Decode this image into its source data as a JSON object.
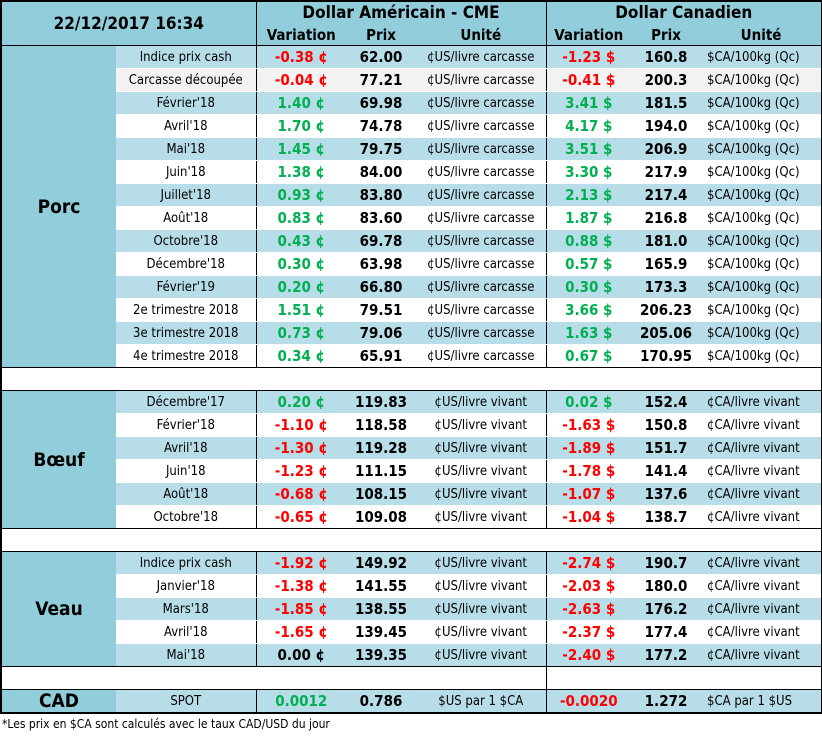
{
  "header": {
    "datetime": "22/12/2017 16:34",
    "usd_title": "Dollar Américain - CME",
    "cad_title": "Dollar Canadien",
    "variation": "Variation",
    "prix": "Prix",
    "unite": "Unité"
  },
  "colors": {
    "negative": "#ff0000",
    "positive": "#00b050",
    "header_bg": "#92cddc",
    "row_bg": "#b7dde8"
  },
  "sections": [
    {
      "name": "Porc",
      "rows": [
        {
          "label": "Indice prix cash",
          "us_var": "-0.38 ¢",
          "us_prix": "62.00",
          "us_unit": "¢US/livre carcasse",
          "ca_var": "-1.23 $",
          "ca_prix": "160.8",
          "ca_unit": "$CA/100kg (Qc)"
        },
        {
          "label": "Carcasse découpée",
          "us_var": "-0.04 ¢",
          "us_prix": "77.21",
          "us_unit": "¢US/livre carcasse",
          "ca_var": "-0.41 $",
          "ca_prix": "200.3",
          "ca_unit": "$CA/100kg (Qc)"
        },
        {
          "label": "Février'18",
          "us_var": "1.40 ¢",
          "us_prix": "69.98",
          "us_unit": "¢US/livre carcasse",
          "ca_var": "3.41 $",
          "ca_prix": "181.5",
          "ca_unit": "$CA/100kg (Qc)"
        },
        {
          "label": "Avril'18",
          "us_var": "1.70 ¢",
          "us_prix": "74.78",
          "us_unit": "¢US/livre carcasse",
          "ca_var": "4.17 $",
          "ca_prix": "194.0",
          "ca_unit": "$CA/100kg (Qc)"
        },
        {
          "label": "Mai'18",
          "us_var": "1.45 ¢",
          "us_prix": "79.75",
          "us_unit": "¢US/livre carcasse",
          "ca_var": "3.51 $",
          "ca_prix": "206.9",
          "ca_unit": "$CA/100kg (Qc)"
        },
        {
          "label": "Juin'18",
          "us_var": "1.38 ¢",
          "us_prix": "84.00",
          "us_unit": "¢US/livre carcasse",
          "ca_var": "3.30 $",
          "ca_prix": "217.9",
          "ca_unit": "$CA/100kg (Qc)"
        },
        {
          "label": "Juillet'18",
          "us_var": "0.93 ¢",
          "us_prix": "83.80",
          "us_unit": "¢US/livre carcasse",
          "ca_var": "2.13 $",
          "ca_prix": "217.4",
          "ca_unit": "$CA/100kg (Qc)"
        },
        {
          "label": "Août'18",
          "us_var": "0.83 ¢",
          "us_prix": "83.60",
          "us_unit": "¢US/livre carcasse",
          "ca_var": "1.87 $",
          "ca_prix": "216.8",
          "ca_unit": "$CA/100kg (Qc)"
        },
        {
          "label": "Octobre'18",
          "us_var": "0.43 ¢",
          "us_prix": "69.78",
          "us_unit": "¢US/livre carcasse",
          "ca_var": "0.88 $",
          "ca_prix": "181.0",
          "ca_unit": "$CA/100kg (Qc)"
        },
        {
          "label": "Décembre'18",
          "us_var": "0.30 ¢",
          "us_prix": "63.98",
          "us_unit": "¢US/livre carcasse",
          "ca_var": "0.57 $",
          "ca_prix": "165.9",
          "ca_unit": "$CA/100kg (Qc)"
        },
        {
          "label": "Février'19",
          "us_var": "0.20 ¢",
          "us_prix": "66.80",
          "us_unit": "¢US/livre carcasse",
          "ca_var": "0.30 $",
          "ca_prix": "173.3",
          "ca_unit": "$CA/100kg (Qc)"
        },
        {
          "label": "2e trimestre 2018",
          "us_var": "1.51 ¢",
          "us_prix": "79.51",
          "us_unit": "¢US/livre carcasse",
          "ca_var": "3.66 $",
          "ca_prix": "206.23",
          "ca_unit": "$CA/100kg (Qc)"
        },
        {
          "label": "3e trimestre 2018",
          "us_var": "0.73 ¢",
          "us_prix": "79.06",
          "us_unit": "¢US/livre carcasse",
          "ca_var": "1.63 $",
          "ca_prix": "205.06",
          "ca_unit": "$CA/100kg (Qc)"
        },
        {
          "label": "4e trimestre 2018",
          "us_var": "0.34 ¢",
          "us_prix": "65.91",
          "us_unit": "¢US/livre carcasse",
          "ca_var": "0.67 $",
          "ca_prix": "170.95",
          "ca_unit": "$CA/100kg (Qc)"
        }
      ]
    },
    {
      "name": "Bœuf",
      "rows": [
        {
          "label": "Décembre'17",
          "us_var": "0.20 ¢",
          "us_prix": "119.83",
          "us_unit": "¢US/livre vivant",
          "ca_var": "0.02 $",
          "ca_prix": "152.4",
          "ca_unit": "¢CA/livre vivant"
        },
        {
          "label": "Février'18",
          "us_var": "-1.10 ¢",
          "us_prix": "118.58",
          "us_unit": "¢US/livre vivant",
          "ca_var": "-1.63 $",
          "ca_prix": "150.8",
          "ca_unit": "¢CA/livre vivant"
        },
        {
          "label": "Avril'18",
          "us_var": "-1.30 ¢",
          "us_prix": "119.28",
          "us_unit": "¢US/livre vivant",
          "ca_var": "-1.89 $",
          "ca_prix": "151.7",
          "ca_unit": "¢CA/livre vivant"
        },
        {
          "label": "Juin'18",
          "us_var": "-1.23 ¢",
          "us_prix": "111.15",
          "us_unit": "¢US/livre vivant",
          "ca_var": "-1.78 $",
          "ca_prix": "141.4",
          "ca_unit": "¢CA/livre vivant"
        },
        {
          "label": "Août'18",
          "us_var": "-0.68 ¢",
          "us_prix": "108.15",
          "us_unit": "¢US/livre vivant",
          "ca_var": "-1.07 $",
          "ca_prix": "137.6",
          "ca_unit": "¢CA/livre vivant"
        },
        {
          "label": "Octobre'18",
          "us_var": "-0.65 ¢",
          "us_prix": "109.08",
          "us_unit": "¢US/livre vivant",
          "ca_var": "-1.04 $",
          "ca_prix": "138.7",
          "ca_unit": "¢CA/livre vivant"
        }
      ]
    },
    {
      "name": "Veau",
      "rows": [
        {
          "label": "Indice prix cash",
          "us_var": "-1.92 ¢",
          "us_prix": "149.92",
          "us_unit": "¢US/livre vivant",
          "ca_var": "-2.74 $",
          "ca_prix": "190.7",
          "ca_unit": "¢CA/livre vivant"
        },
        {
          "label": "Janvier'18",
          "us_var": "-1.38 ¢",
          "us_prix": "141.55",
          "us_unit": "¢US/livre vivant",
          "ca_var": "-2.03 $",
          "ca_prix": "180.0",
          "ca_unit": "¢CA/livre vivant"
        },
        {
          "label": "Mars'18",
          "us_var": "-1.85 ¢",
          "us_prix": "138.55",
          "us_unit": "¢US/livre vivant",
          "ca_var": "-2.63 $",
          "ca_prix": "176.2",
          "ca_unit": "¢CA/livre vivant"
        },
        {
          "label": "Avril'18",
          "us_var": "-1.65 ¢",
          "us_prix": "139.45",
          "us_unit": "¢US/livre vivant",
          "ca_var": "-2.37 $",
          "ca_prix": "177.4",
          "ca_unit": "¢CA/livre vivant"
        },
        {
          "label": "Mai'18",
          "us_var": "0.00 ¢",
          "us_prix": "139.35",
          "us_unit": "¢US/livre vivant",
          "ca_var": "-2.40 $",
          "ca_prix": "177.2",
          "ca_unit": "¢CA/livre vivant"
        }
      ]
    },
    {
      "name": "CAD",
      "rows": [
        {
          "label": "SPOT",
          "us_var": "0.0012",
          "us_prix": "0.786",
          "us_unit": "$US par 1 $CA",
          "ca_var": "-0.0020",
          "ca_prix": "1.272",
          "ca_unit": "$CA par 1 $US"
        }
      ]
    }
  ],
  "footnote": "*Les  prix en $CA sont calculés avec le taux CAD/USD du jour"
}
